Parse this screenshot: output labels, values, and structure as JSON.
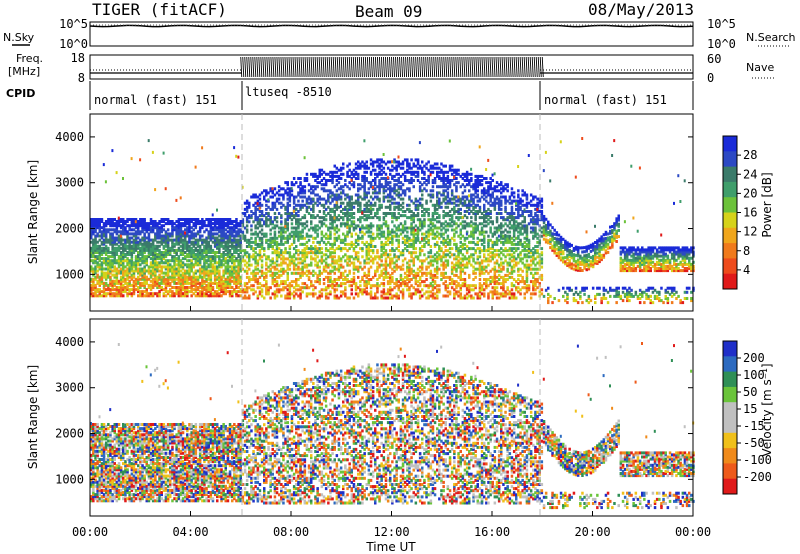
{
  "header": {
    "station": "TIGER (fitACF)",
    "beam": "Beam 09",
    "date": "08/May/2013"
  },
  "top_panels": {
    "nsky_label": "N.Sky",
    "nsearch_label": "N.Search",
    "freq_label": "Freq.",
    "freq_unit": "[MHz]",
    "nave_label": "Nave",
    "cpid_label": "CPID",
    "nsky_ticks": [
      "10^5",
      "10^0"
    ],
    "nsearch_ticks": [
      "10^5",
      "10^0"
    ],
    "freq_ticks": [
      "18",
      "8"
    ],
    "nave_ticks": [
      "60",
      "0"
    ]
  },
  "cpid_segments": [
    {
      "label": "normal (fast) 151",
      "start_hour": 0,
      "end_hour": 6
    },
    {
      "label": "ltuseq -8510",
      "start_hour": 6,
      "end_hour": 18
    },
    {
      "label": "normal (fast) 151",
      "start_hour": 18,
      "end_hour": 24
    }
  ],
  "colors": {
    "power_scale": [
      "#1a2bd8",
      "#2c49c4",
      "#3b7b6a",
      "#3f9e6b",
      "#6cc23a",
      "#d6d21a",
      "#f0a61c",
      "#f07a1c",
      "#ee4b1c",
      "#e01a1a"
    ],
    "velocity_scale": [
      "#1f2fc8",
      "#2c6ac0",
      "#2f8f56",
      "#6ac43a",
      "#c0c0c0",
      "#c0c0c0",
      "#f0c01a",
      "#f08a1a",
      "#ee5a1a",
      "#e01a1a"
    ]
  },
  "chart_data": [
    {
      "type": "heatmap",
      "name": "power",
      "ylabel": "Slant Range [km]",
      "xlabel": "Time UT",
      "colorbar_label": "Power [dB]",
      "colorbar_ticks": [
        "28",
        "24",
        "20",
        "16",
        "12",
        "8",
        "4"
      ],
      "xlim": [
        0,
        24
      ],
      "ylim": [
        200,
        4500
      ],
      "x_ticks": [
        "00:00",
        "04:00",
        "08:00",
        "12:00",
        "16:00",
        "20:00",
        "00:00"
      ],
      "y_ticks": [
        "4000",
        "3000",
        "2000",
        "1000"
      ]
    },
    {
      "type": "heatmap",
      "name": "velocity",
      "ylabel": "Slant Range [km]",
      "xlabel": "Time UT",
      "colorbar_label": "Velocity [m s⁻¹]",
      "colorbar_ticks": [
        "200",
        "100",
        "50",
        "15",
        "-15",
        "-50",
        "-100",
        "-200"
      ],
      "xlim": [
        0,
        24
      ],
      "ylim": [
        200,
        4500
      ],
      "x_ticks": [
        "00:00",
        "04:00",
        "08:00",
        "12:00",
        "16:00",
        "20:00",
        "00:00"
      ],
      "y_ticks": [
        "4000",
        "3000",
        "2000",
        "1000"
      ]
    }
  ]
}
